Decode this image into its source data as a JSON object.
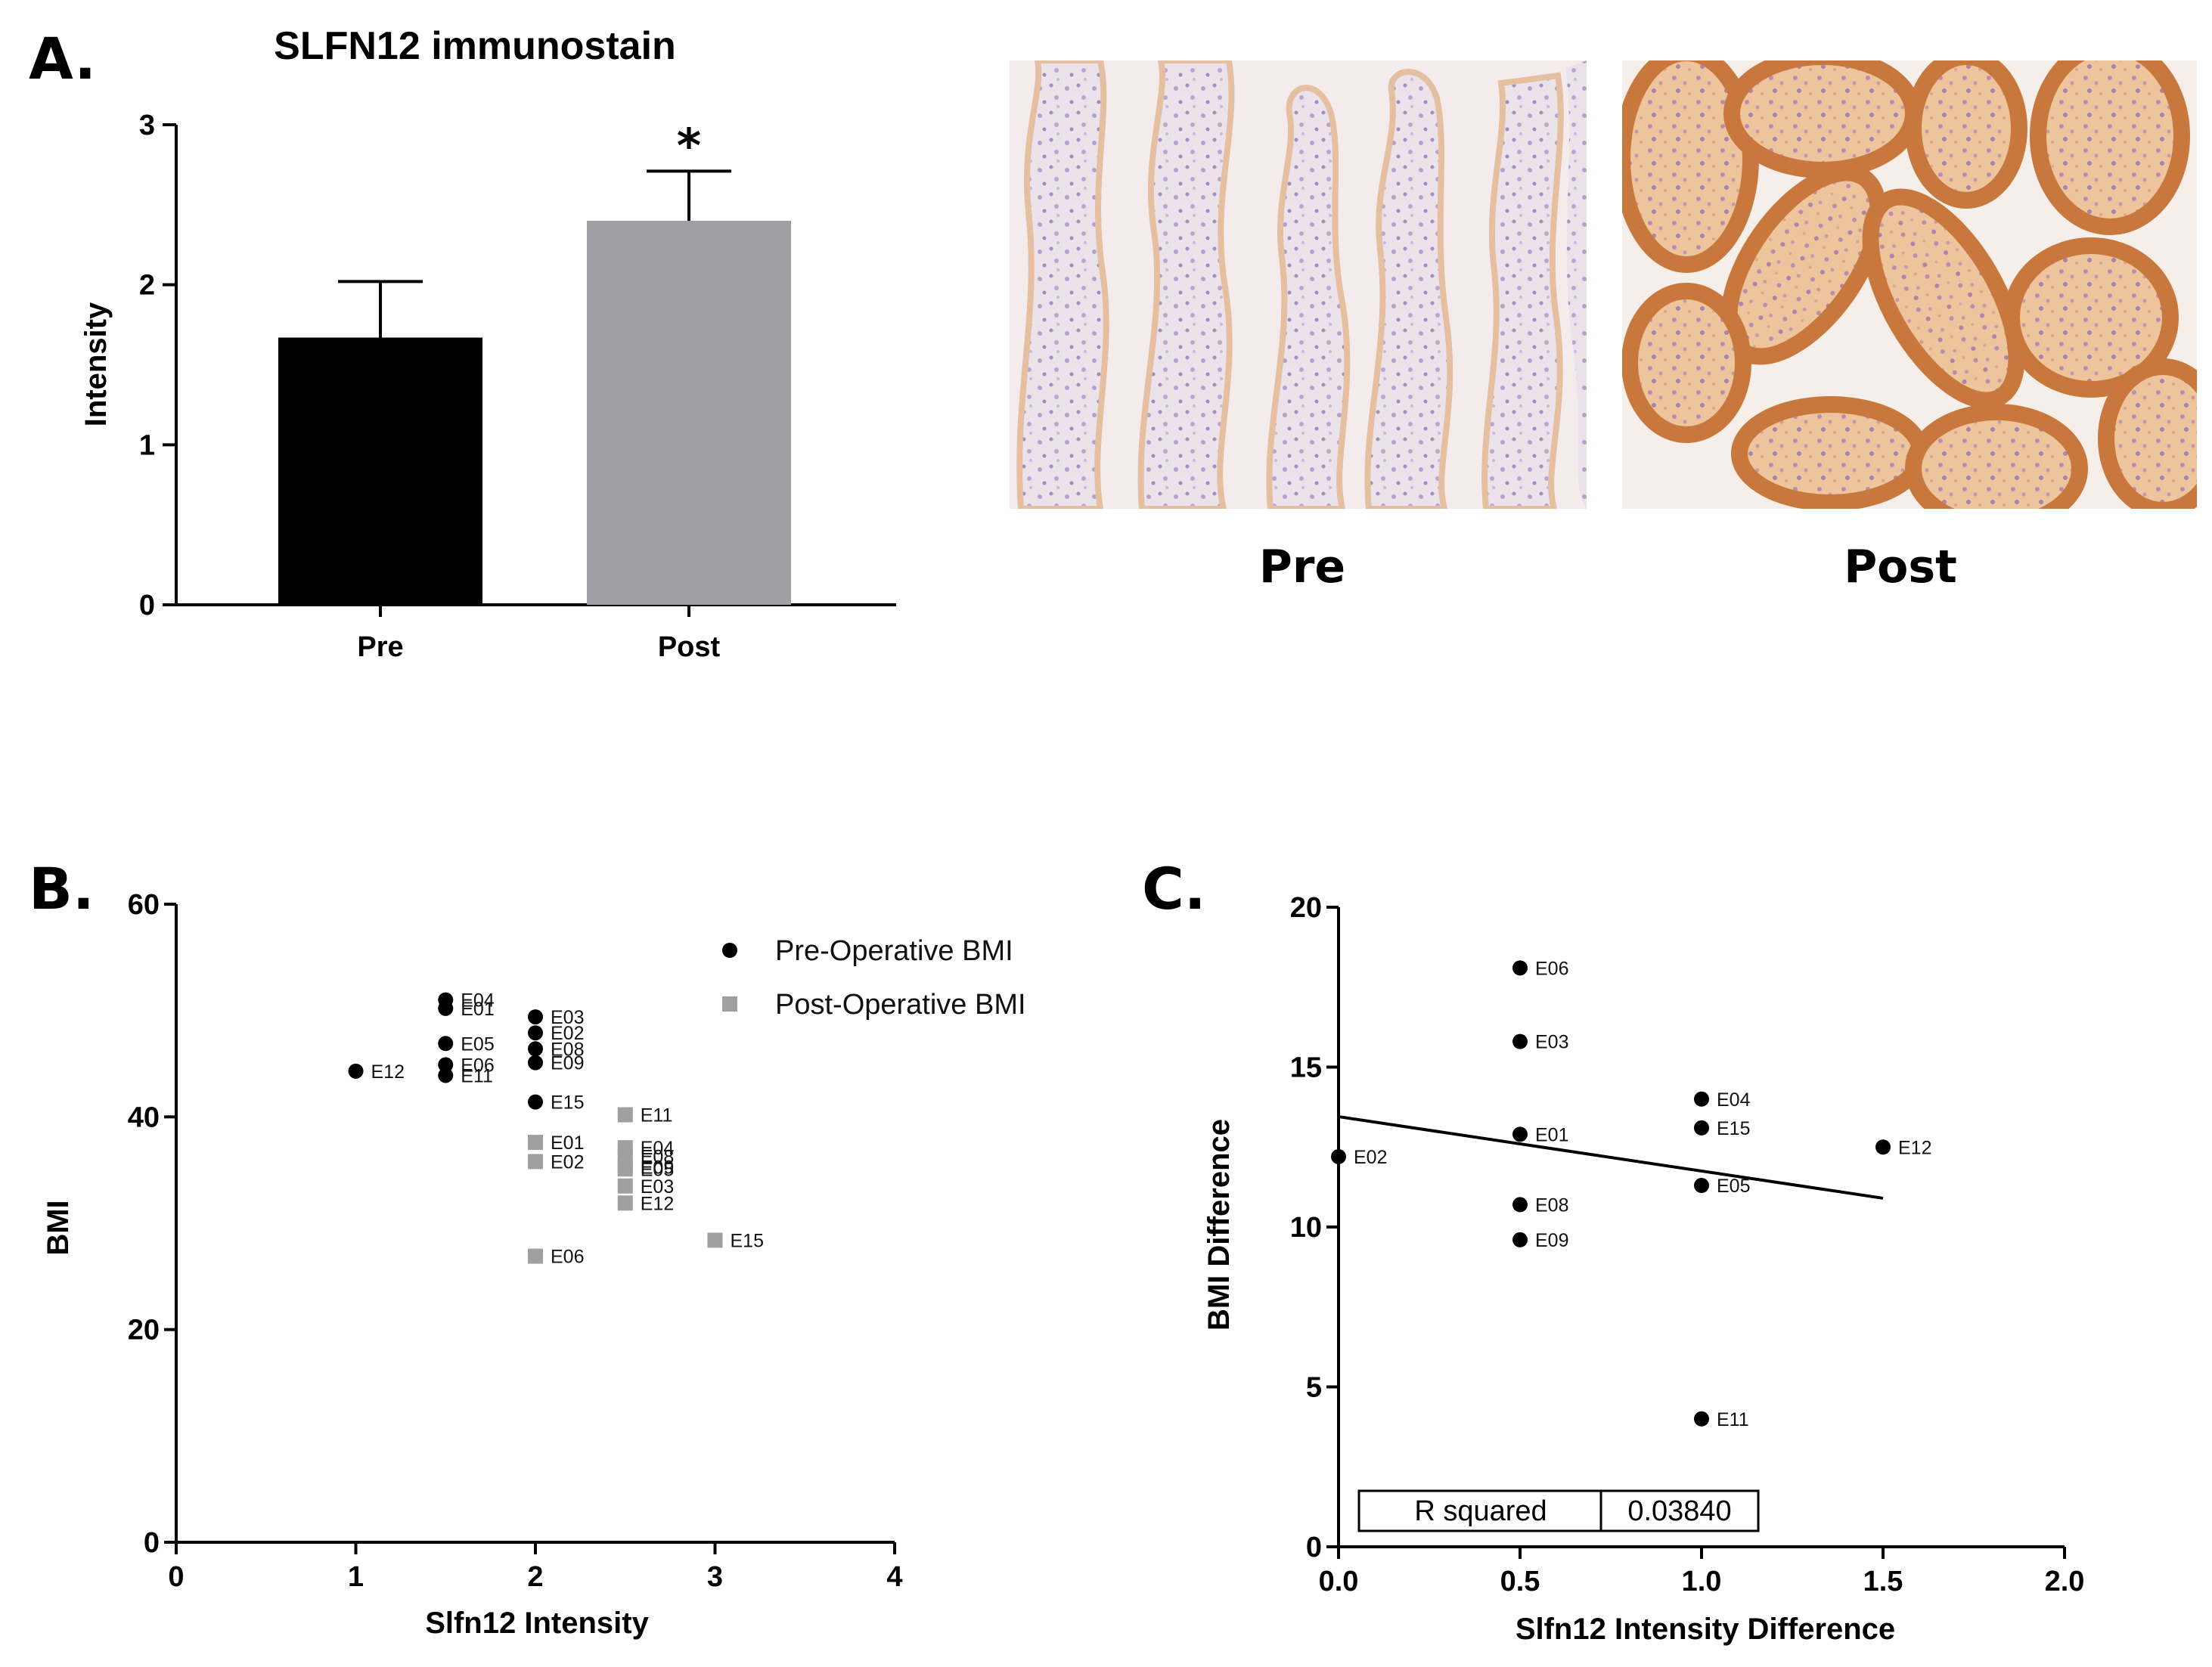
{
  "panels": {
    "A": {
      "letter": "A.",
      "title": "SLFN12 immunostain",
      "ylabel": "Intensity",
      "significance": "*",
      "image_labels": [
        "Pre",
        "Post"
      ]
    },
    "B": {
      "letter": "B.",
      "xlabel": "Slfn12 Intensity",
      "ylabel": "BMI"
    },
    "C": {
      "letter": "C.",
      "xlabel": "Slfn12 Intensity Difference",
      "ylabel": "BMI Difference",
      "r_squared_label": "R squared",
      "r_squared_value": "0.03840"
    }
  },
  "chart_data": [
    {
      "id": "A",
      "type": "bar",
      "title": "SLFN12 immunostain",
      "ylabel": "Intensity",
      "ylim": [
        0,
        3
      ],
      "yticks": [
        "0",
        "1",
        "2",
        "3"
      ],
      "categories": [
        "Pre",
        "Post"
      ],
      "values": [
        1.67,
        2.4
      ],
      "errors": [
        0.35,
        0.31
      ],
      "colors": [
        "#000000",
        "#a0a0a4"
      ],
      "annotation": "*"
    },
    {
      "id": "B",
      "type": "scatter",
      "xlabel": "Slfn12 Intensity",
      "ylabel": "BMI",
      "xlim": [
        0,
        4
      ],
      "ylim": [
        0,
        60
      ],
      "xticks": [
        "0",
        "1",
        "2",
        "3",
        "4"
      ],
      "yticks": [
        "0",
        "20",
        "40",
        "60"
      ],
      "legend_position": "top-right",
      "series": [
        {
          "name": "Pre-Operative BMI",
          "marker": "circle",
          "color": "#000000",
          "points": [
            {
              "label": "E12",
              "x": 1.0,
              "y": 44.3
            },
            {
              "label": "E04",
              "x": 1.5,
              "y": 51.0
            },
            {
              "label": "E01",
              "x": 1.5,
              "y": 50.2
            },
            {
              "label": "E05",
              "x": 1.5,
              "y": 46.9
            },
            {
              "label": "E06",
              "x": 1.5,
              "y": 44.9
            },
            {
              "label": "E11",
              "x": 1.5,
              "y": 43.9
            },
            {
              "label": "E03",
              "x": 2.0,
              "y": 49.4
            },
            {
              "label": "E02",
              "x": 2.0,
              "y": 47.9
            },
            {
              "label": "E08",
              "x": 2.0,
              "y": 46.4
            },
            {
              "label": "E09",
              "x": 2.0,
              "y": 45.1
            },
            {
              "label": "E15",
              "x": 2.0,
              "y": 41.4
            }
          ]
        },
        {
          "name": "Post-Operative BMI",
          "marker": "square",
          "color": "#a0a0a0",
          "points": [
            {
              "label": "E01",
              "x": 2.0,
              "y": 37.6
            },
            {
              "label": "E02",
              "x": 2.0,
              "y": 35.8
            },
            {
              "label": "E06",
              "x": 2.0,
              "y": 26.9
            },
            {
              "label": "E11",
              "x": 2.5,
              "y": 40.2
            },
            {
              "label": "E04",
              "x": 2.5,
              "y": 37.1
            },
            {
              "label": "E08",
              "x": 2.5,
              "y": 36.3
            },
            {
              "label": "E05",
              "x": 2.5,
              "y": 35.1
            },
            {
              "label": "E09",
              "x": 2.5,
              "y": 35.3
            },
            {
              "label": "E03",
              "x": 2.5,
              "y": 33.5
            },
            {
              "label": "E12",
              "x": 2.5,
              "y": 31.9
            },
            {
              "label": "E15",
              "x": 3.0,
              "y": 28.4
            }
          ]
        }
      ]
    },
    {
      "id": "C",
      "type": "scatter",
      "xlabel": "Slfn12 Intensity Difference",
      "ylabel": "BMI Difference",
      "xlim": [
        0,
        2
      ],
      "ylim": [
        0,
        20
      ],
      "xticks": [
        "0.0",
        "0.5",
        "1.0",
        "1.5",
        "2.0"
      ],
      "yticks": [
        "0",
        "5",
        "10",
        "15",
        "20"
      ],
      "points": [
        {
          "label": "E02",
          "x": 0.0,
          "y": 12.2
        },
        {
          "label": "E06",
          "x": 0.5,
          "y": 18.1
        },
        {
          "label": "E03",
          "x": 0.5,
          "y": 15.8
        },
        {
          "label": "E01",
          "x": 0.5,
          "y": 12.9
        },
        {
          "label": "E08",
          "x": 0.5,
          "y": 10.7
        },
        {
          "label": "E09",
          "x": 0.5,
          "y": 9.6
        },
        {
          "label": "E04",
          "x": 1.0,
          "y": 14.0
        },
        {
          "label": "E15",
          "x": 1.0,
          "y": 13.1
        },
        {
          "label": "E05",
          "x": 1.0,
          "y": 11.3
        },
        {
          "label": "E11",
          "x": 1.0,
          "y": 4.0
        },
        {
          "label": "E12",
          "x": 1.5,
          "y": 12.5
        }
      ],
      "regression": {
        "x": [
          0.0,
          1.5
        ],
        "y": [
          13.45,
          10.9
        ]
      },
      "r_squared": "0.03840"
    }
  ]
}
